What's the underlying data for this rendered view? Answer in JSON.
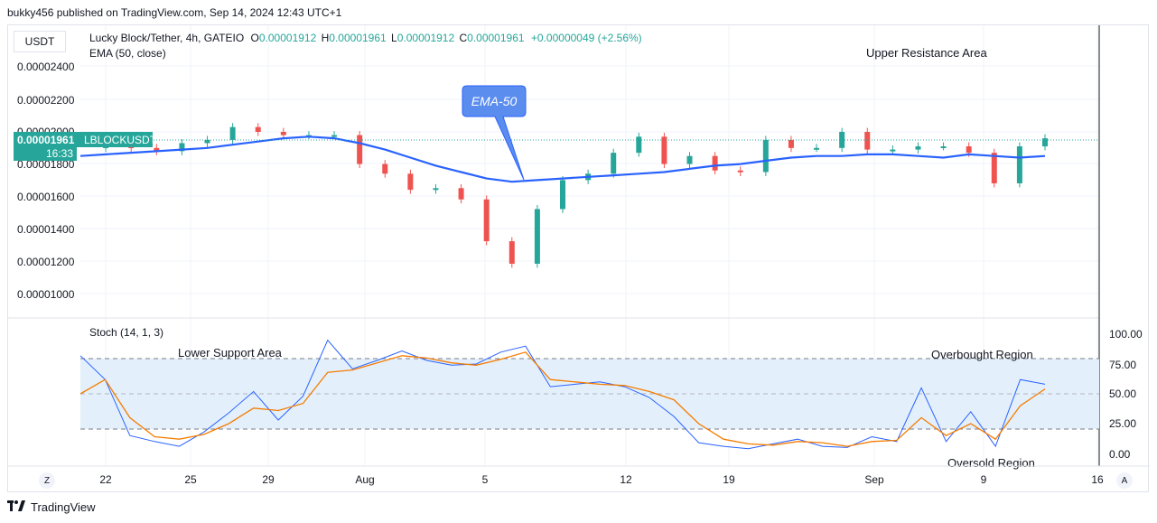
{
  "header": {
    "published": "bukky456 published on TradingView.com, Sep 14, 2024 12:43 UTC+1"
  },
  "currency_button": "USDT",
  "legend": {
    "symbol": "Lucky Block/Tether, 4h, GATEIO",
    "open_label": "O",
    "open": "0.00001912",
    "high_label": "H",
    "high": "0.00001961",
    "low_label": "L",
    "low": "0.00001912",
    "close_label": "C",
    "close": "0.00001961",
    "change": "+0.00000049 (+2.56%)",
    "ema": "EMA (50, close)",
    "stoch": "Stoch (14, 1, 3)"
  },
  "price_badge": {
    "price": "0.00001961",
    "ticker": "LBLOCKUSDT",
    "countdown": "16:33"
  },
  "annotations": {
    "upper_resistance": "Upper Resistance Area",
    "ema_callout": "EMA-50",
    "lower_support": "Lower Support Area",
    "overbought": "Overbought Region",
    "oversold": "Oversold Region"
  },
  "time_axis": {
    "zoom_button": "Z",
    "auto_button": "A"
  },
  "footer": {
    "brand": "TradingView"
  },
  "colors": {
    "up": "#26a69a",
    "down": "#ef5350",
    "ema": "#2962ff",
    "stoch_k": "#2962ff",
    "stoch_d": "#f57c00",
    "band": "#e3f0fc"
  },
  "chart_data": [
    {
      "type": "candlestick",
      "title": "Lucky Block/Tether, 4h, GATEIO",
      "y_ticks": [
        "0.00002400",
        "0.00002200",
        "0.00002000",
        "0.00001800",
        "0.00001600",
        "0.00001400",
        "0.00001200",
        "0.00001000"
      ],
      "x_ticks": [
        "22",
        "25",
        "29",
        "Aug",
        "5",
        "12",
        "19",
        "Sep",
        "9",
        "16"
      ],
      "series": [
        {
          "name": "EMA (50, close)",
          "type": "line",
          "values": [
            18.5,
            18.6,
            18.7,
            18.8,
            18.9,
            19.0,
            19.2,
            19.4,
            19.6,
            19.7,
            19.6,
            19.3,
            18.9,
            18.4,
            17.9,
            17.5,
            17.1,
            16.9,
            17.0,
            17.1,
            17.2,
            17.3,
            17.4,
            17.5,
            17.7,
            17.9,
            18.0,
            18.2,
            18.4,
            18.5,
            18.5,
            18.6,
            18.6,
            18.5,
            18.4,
            18.6,
            18.5,
            18.4,
            18.5
          ]
        },
        {
          "name": "Close",
          "type": "line",
          "values": [
            19.0,
            19.1,
            19.0,
            18.8,
            19.3,
            19.5,
            20.3,
            20.0,
            19.8,
            19.8,
            19.8,
            18.0,
            17.4,
            16.4,
            16.5,
            15.8,
            13.2,
            11.8,
            15.2,
            17.0,
            17.4,
            18.7,
            19.7,
            18.0,
            18.5,
            17.6,
            17.5,
            19.5,
            19.0,
            19.0,
            20.0,
            18.9,
            18.9,
            19.1,
            19.1,
            18.7,
            16.8,
            19.1,
            19.6
          ]
        }
      ],
      "current_price": "0.00001961"
    },
    {
      "type": "line",
      "title": "Stoch (14, 1, 3)",
      "y_ticks": [
        "100.00",
        "75.00",
        "50.00",
        "25.00",
        "0.00"
      ],
      "bands": [
        20,
        80
      ],
      "series": [
        {
          "name": "%K",
          "values": [
            82,
            62,
            15,
            10,
            6,
            18,
            34,
            52,
            28,
            48,
            95,
            71,
            78,
            86,
            78,
            74,
            75,
            85,
            90,
            56,
            58,
            60,
            56,
            47,
            31,
            9,
            6,
            4,
            8,
            12,
            6,
            5,
            14,
            10,
            55,
            10,
            35,
            6,
            62,
            58
          ]
        },
        {
          "name": "%D",
          "values": [
            50,
            62,
            30,
            14,
            12,
            16,
            25,
            38,
            36,
            42,
            68,
            70,
            76,
            82,
            80,
            76,
            74,
            79,
            85,
            62,
            60,
            58,
            57,
            52,
            45,
            25,
            12,
            8,
            7,
            10,
            9,
            6,
            10,
            11,
            30,
            15,
            25,
            12,
            40,
            54
          ]
        }
      ]
    }
  ]
}
